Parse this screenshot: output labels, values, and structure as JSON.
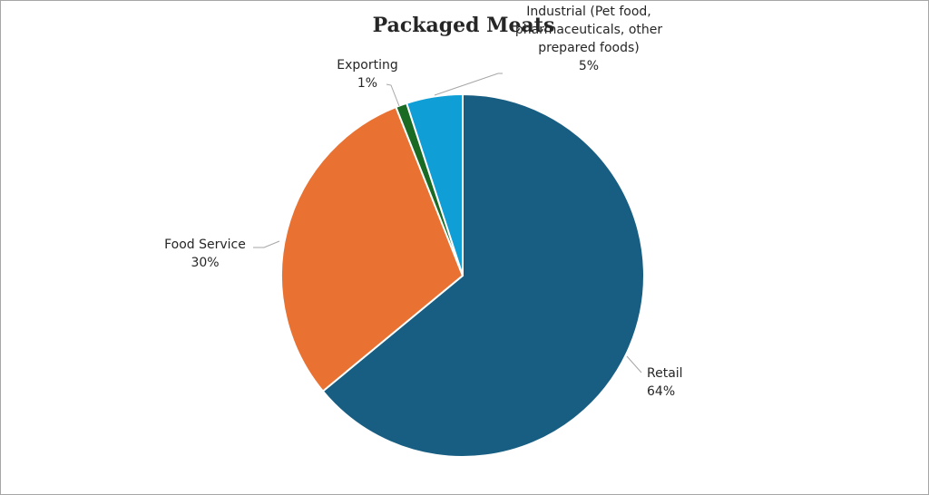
{
  "chart_data": {
    "type": "pie",
    "title": "Packaged Meats",
    "slices": [
      {
        "label_lines": [
          "Retail"
        ],
        "value": 64,
        "value_label": "64%",
        "color": "#175e82"
      },
      {
        "label_lines": [
          "Food Service"
        ],
        "value": 30,
        "value_label": "30%",
        "color": "#e97132"
      },
      {
        "label_lines": [
          "Exporting"
        ],
        "value": 1,
        "value_label": "1%",
        "color": "#196b24"
      },
      {
        "label_lines": [
          "Industrial (Pet food,",
          "pharmaceuticals, other",
          "prepared foods)"
        ],
        "value": 5,
        "value_label": "5%",
        "color": "#0f9ed5"
      }
    ],
    "start_angle_deg": 0,
    "direction": "clockwise",
    "legend": "none"
  }
}
